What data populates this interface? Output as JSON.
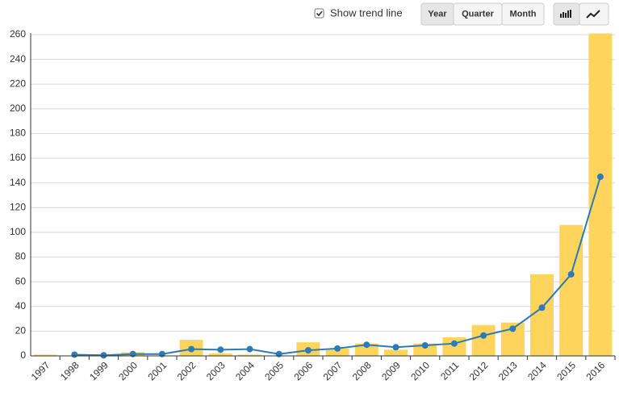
{
  "controls": {
    "checkbox_label": "Show trend line",
    "checked": true,
    "period_buttons": [
      "Year",
      "Quarter",
      "Month"
    ],
    "selected_period": "Year"
  },
  "chart_data": {
    "type": "bar",
    "categories": [
      "1997",
      "1998",
      "1999",
      "2000",
      "2001",
      "2002",
      "2003",
      "2004",
      "2005",
      "2006",
      "2007",
      "2008",
      "2009",
      "2010",
      "2011",
      "2012",
      "2013",
      "2014",
      "2015",
      "2016"
    ],
    "series": [
      {
        "type": "bar",
        "color": "#ffd45c",
        "values": [
          1,
          0,
          0,
          3,
          0,
          13,
          2,
          1,
          0,
          11,
          6,
          10,
          5,
          10,
          15,
          25,
          27,
          66,
          106,
          261
        ]
      },
      {
        "type": "line",
        "color": "#2b7bb9",
        "values": [
          null,
          1,
          0.5,
          1.5,
          1.5,
          5.5,
          5,
          5.5,
          1.5,
          4.5,
          6,
          9,
          7,
          8.5,
          10,
          16.5,
          22,
          39,
          66,
          145
        ]
      }
    ],
    "ylim": [
      0,
      260
    ],
    "yticks": [
      0,
      20,
      40,
      60,
      80,
      100,
      120,
      140,
      160,
      180,
      200,
      220,
      240,
      260
    ],
    "grid": true
  }
}
